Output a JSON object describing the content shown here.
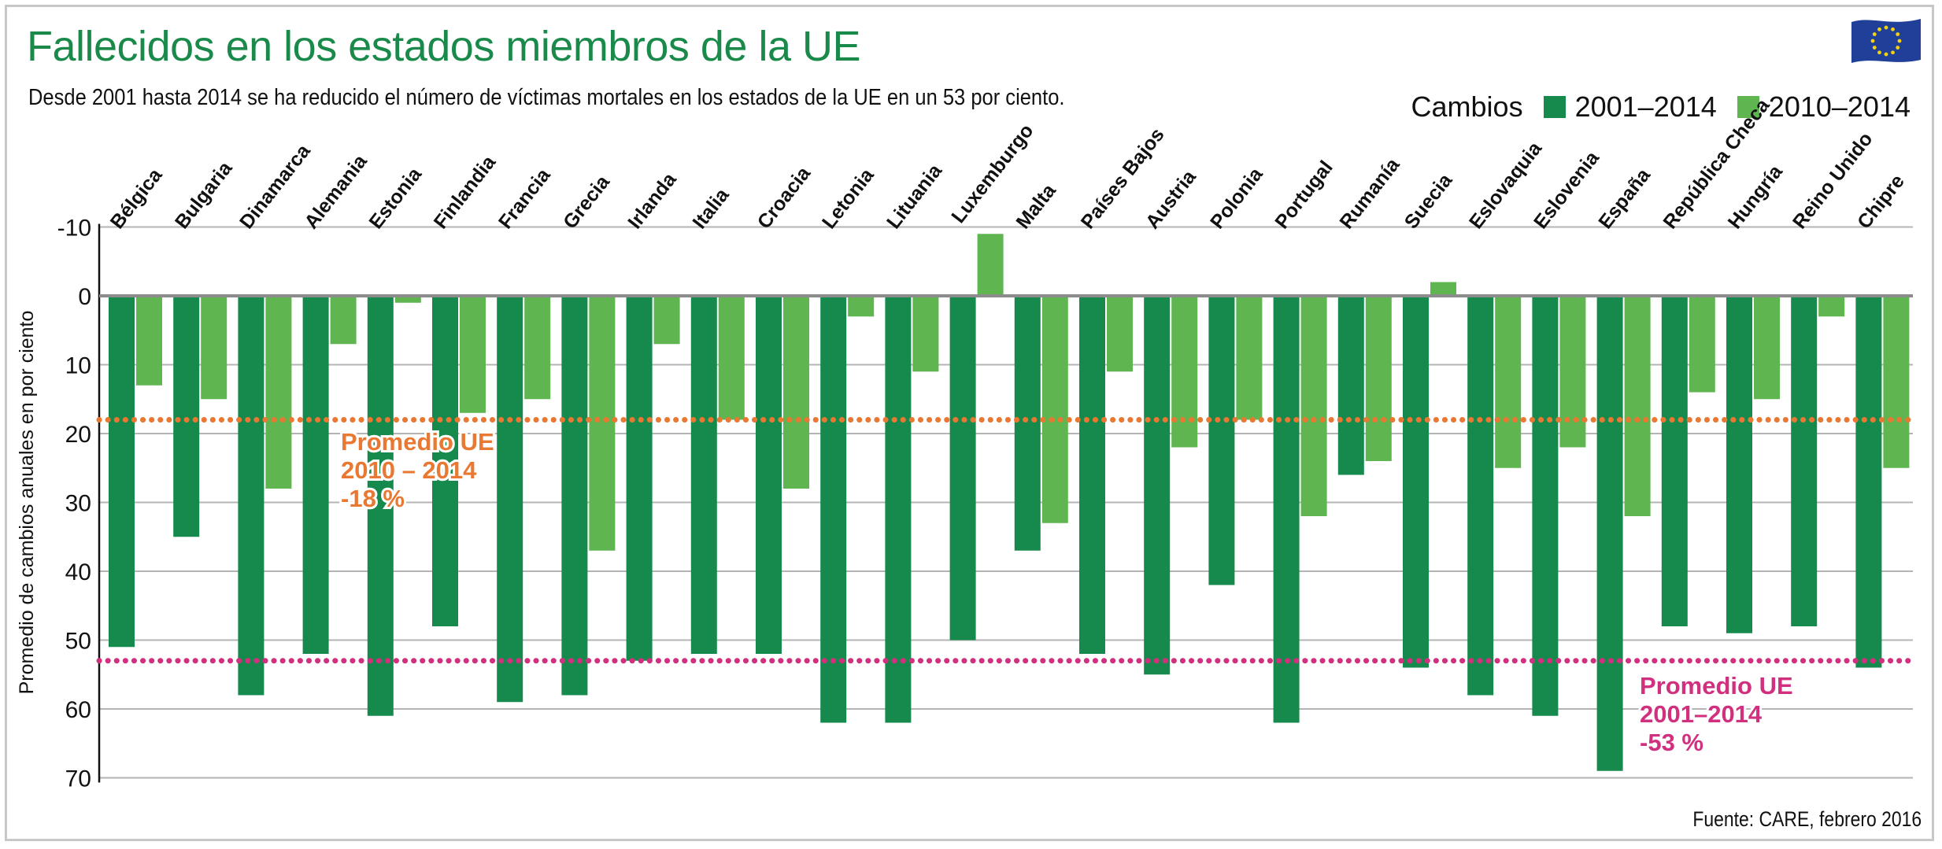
{
  "header": {
    "title": "Fallecidos en los estados miembros de la UE",
    "subtitle": "Desde 2001 hasta 2014 se ha reducido el número de víctimas mortales en los estados de la UE en un 53 por ciento."
  },
  "legend": {
    "label": "Cambios",
    "entries": [
      {
        "label": "2001–2014",
        "color": "#168a4c"
      },
      {
        "label": "2010–2014",
        "color": "#5fb54f"
      }
    ]
  },
  "footer": {
    "source": "Fuente: CARE, febrero 2016"
  },
  "colors": {
    "series_dark": "#168a4c",
    "series_light": "#5fb54f",
    "avg_recent": "#e87832",
    "avg_long": "#d1307f",
    "grid": "#b4b4b4",
    "title": "#1a8a4a",
    "flag_blue": "#1f3f99",
    "flag_star": "#f5d20a"
  },
  "icons": {
    "flag": "eu-flag-icon"
  },
  "chart_data": {
    "type": "bar",
    "title": "Fallecidos en los estados miembros de la UE",
    "ylabel": "Promedio de cambios anuales en por ciento",
    "xlabel": "",
    "ylim": [
      -10,
      70
    ],
    "y_inverted": true,
    "yticks": [
      -10,
      0,
      10,
      20,
      30,
      40,
      50,
      60,
      70
    ],
    "grid": true,
    "legend_position": "top-right",
    "categories": [
      "Bélgica",
      "Bulgaria",
      "Dinamarca",
      "Alemania",
      "Estonia",
      "Finlandia",
      "Francia",
      "Grecia",
      "Irlanda",
      "Italia",
      "Croacia",
      "Letonia",
      "Lituania",
      "Luxemburgo",
      "Malta",
      "Países Bajos",
      "Austria",
      "Polonia",
      "Portugal",
      "Rumanía",
      "Suecia",
      "Eslovaquia",
      "Eslovenia",
      "España",
      "República Checa",
      "Hungría",
      "Reino Unido",
      "Chipre"
    ],
    "series": [
      {
        "name": "2001–2014",
        "values": [
          51,
          35,
          58,
          52,
          61,
          48,
          59,
          58,
          53,
          52,
          52,
          62,
          62,
          50,
          37,
          52,
          55,
          42,
          62,
          26,
          54,
          58,
          61,
          69,
          48,
          49,
          48,
          54
        ]
      },
      {
        "name": "2010–2014",
        "values": [
          13,
          15,
          28,
          7,
          1,
          17,
          15,
          37,
          7,
          18,
          28,
          3,
          11,
          -9,
          33,
          11,
          22,
          18,
          32,
          24,
          -2,
          25,
          22,
          32,
          14,
          15,
          3,
          25
        ]
      }
    ],
    "reference_lines": [
      {
        "name": "Promedio UE 2010–2014",
        "value": 18,
        "label_lines": [
          "Promedio UE",
          "2010 – 2014",
          "-18 %"
        ]
      },
      {
        "name": "Promedio UE 2001–2014",
        "value": 53,
        "label_lines": [
          "Promedio UE",
          "2001–2014",
          "-53 %"
        ]
      }
    ]
  }
}
